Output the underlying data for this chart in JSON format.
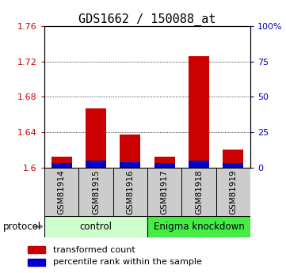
{
  "title": "GDS1662 / 150088_at",
  "samples": [
    "GSM81914",
    "GSM81915",
    "GSM81916",
    "GSM81917",
    "GSM81918",
    "GSM81919"
  ],
  "red_values": [
    1.613,
    1.667,
    1.638,
    1.613,
    1.726,
    1.621
  ],
  "blue_percentile": [
    3.5,
    5.0,
    4.0,
    3.5,
    5.0,
    3.5
  ],
  "ylim_left": [
    1.6,
    1.76
  ],
  "yticks_left": [
    1.6,
    1.64,
    1.68,
    1.72,
    1.76
  ],
  "ytick_labels_left": [
    "1.6",
    "1.64",
    "1.68",
    "1.72",
    "1.76"
  ],
  "ylim_right": [
    0,
    100
  ],
  "yticks_right": [
    0,
    25,
    50,
    75,
    100
  ],
  "ytick_labels_right": [
    "0",
    "25",
    "50",
    "75",
    "100%"
  ],
  "control_label": "control",
  "knockdown_label": "Enigma knockdown",
  "protocol_label": "protocol",
  "legend_red": "transformed count",
  "legend_blue": "percentile rank within the sample",
  "bar_width": 0.6,
  "red_color": "#cc0000",
  "blue_color": "#0000cc",
  "control_bg": "#ccffcc",
  "knockdown_bg": "#44ee44",
  "sample_bg": "#cccccc",
  "baseline": 1.6,
  "title_fontsize": 11,
  "tick_fontsize": 8,
  "annot_fontsize": 8
}
